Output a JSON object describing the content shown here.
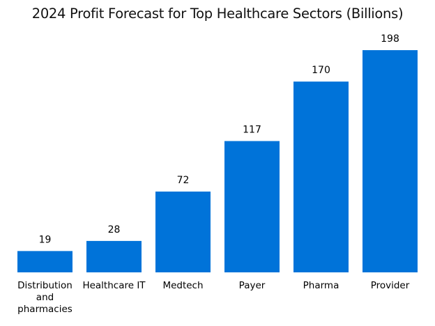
{
  "chart_data": {
    "type": "bar",
    "title": "2024 Profit Forecast for Top Healthcare Sectors (Billions)",
    "categories": [
      [
        "Distribution",
        "and",
        "pharmacies"
      ],
      [
        "Healthcare IT"
      ],
      [
        "Medtech"
      ],
      [
        "Payer"
      ],
      [
        "Pharma"
      ],
      [
        "Provider"
      ]
    ],
    "values": [
      19,
      28,
      72,
      117,
      170,
      198
    ],
    "xlabel": "",
    "ylabel": "",
    "ylim": [
      0,
      198
    ],
    "grid": false,
    "legend": "none",
    "bar_color": "#0073d9"
  }
}
